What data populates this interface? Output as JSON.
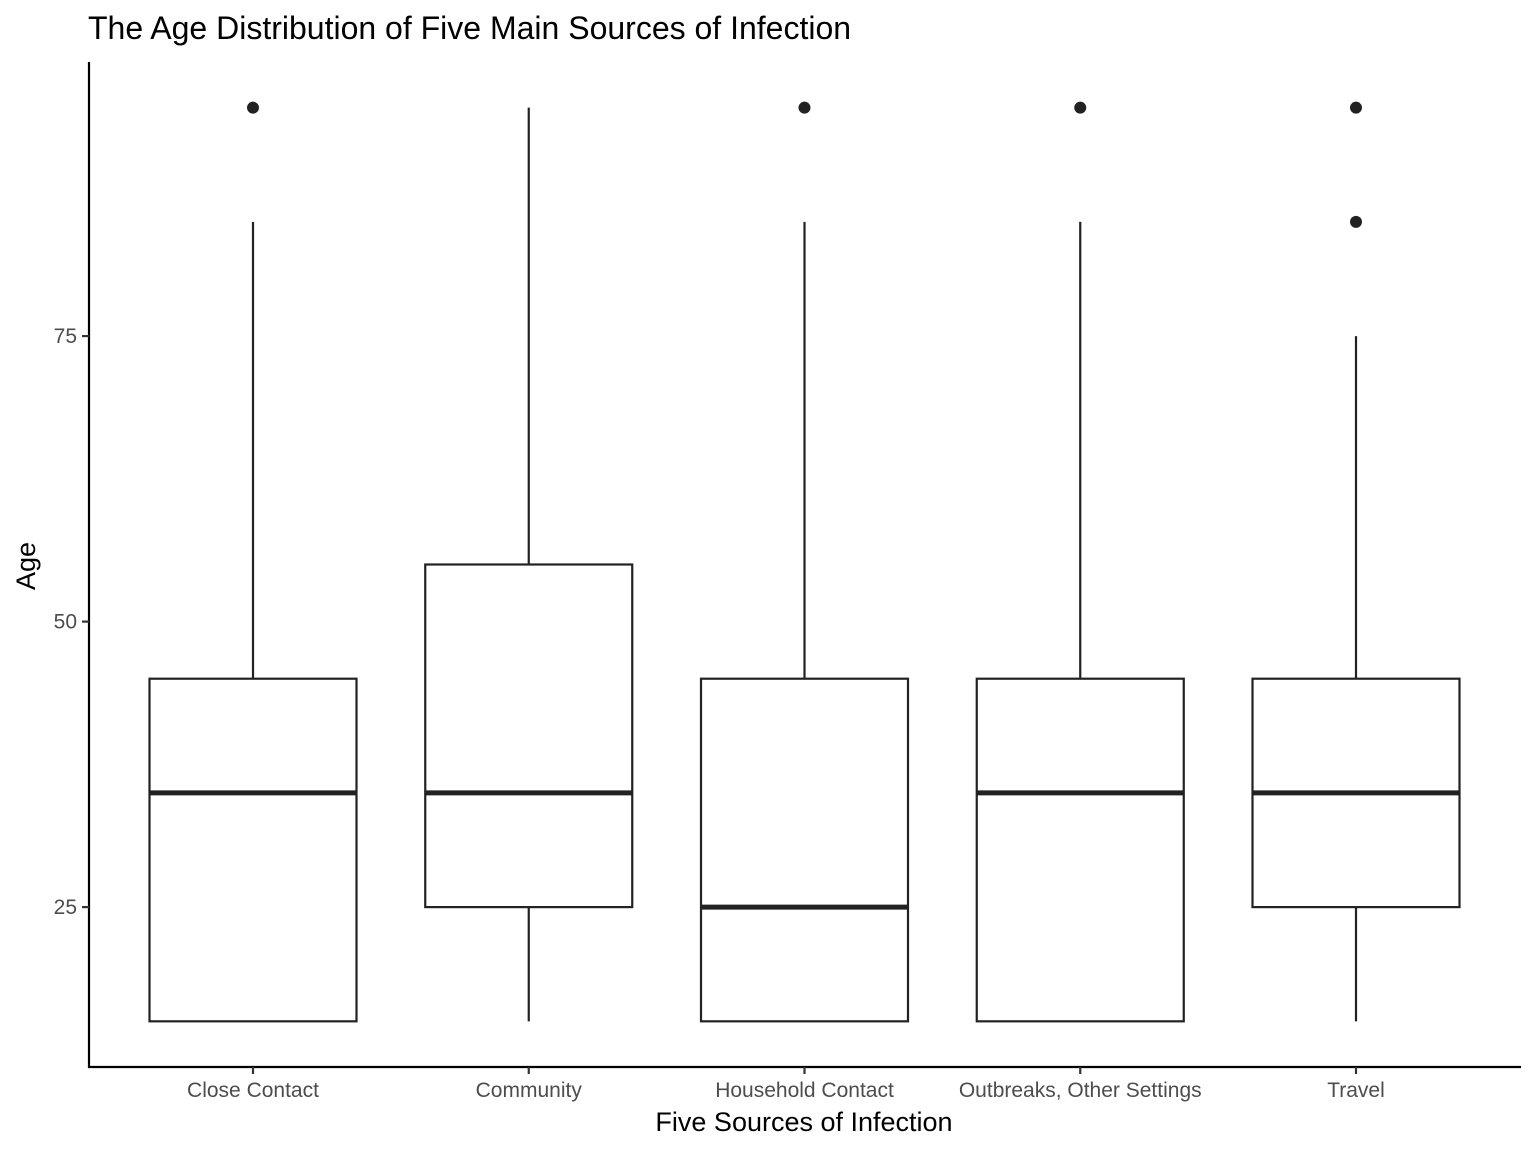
{
  "chart_data": {
    "type": "boxplot",
    "title": "The Age Distribution of Five Main Sources of Infection",
    "xlabel": "Five Sources of Infection",
    "ylabel": "Age",
    "ylim": [
      11,
      99
    ],
    "yticks": [
      25,
      50,
      75
    ],
    "grid": false,
    "categories": [
      "Close Contact",
      "Community",
      "Household Contact",
      "Outbreaks, Other Settings",
      "Travel"
    ],
    "boxes": [
      {
        "category": "Close Contact",
        "whisker_low": 15,
        "q1": 15,
        "median": 35,
        "q3": 45,
        "whisker_high": 85,
        "outliers": [
          95
        ]
      },
      {
        "category": "Community",
        "whisker_low": 15,
        "q1": 25,
        "median": 35,
        "q3": 55,
        "whisker_high": 95,
        "outliers": []
      },
      {
        "category": "Household Contact",
        "whisker_low": 15,
        "q1": 15,
        "median": 25,
        "q3": 45,
        "whisker_high": 85,
        "outliers": [
          95
        ]
      },
      {
        "category": "Outbreaks, Other Settings",
        "whisker_low": 15,
        "q1": 15,
        "median": 35,
        "q3": 45,
        "whisker_high": 85,
        "outliers": [
          95
        ]
      },
      {
        "category": "Travel",
        "whisker_low": 15,
        "q1": 25,
        "median": 35,
        "q3": 45,
        "whisker_high": 75,
        "outliers": [
          85,
          95
        ]
      }
    ],
    "colors": {
      "box_stroke": "#222222",
      "box_fill": "#ffffff",
      "axis": "#000000",
      "tick_text": "#4d4d4d"
    }
  }
}
